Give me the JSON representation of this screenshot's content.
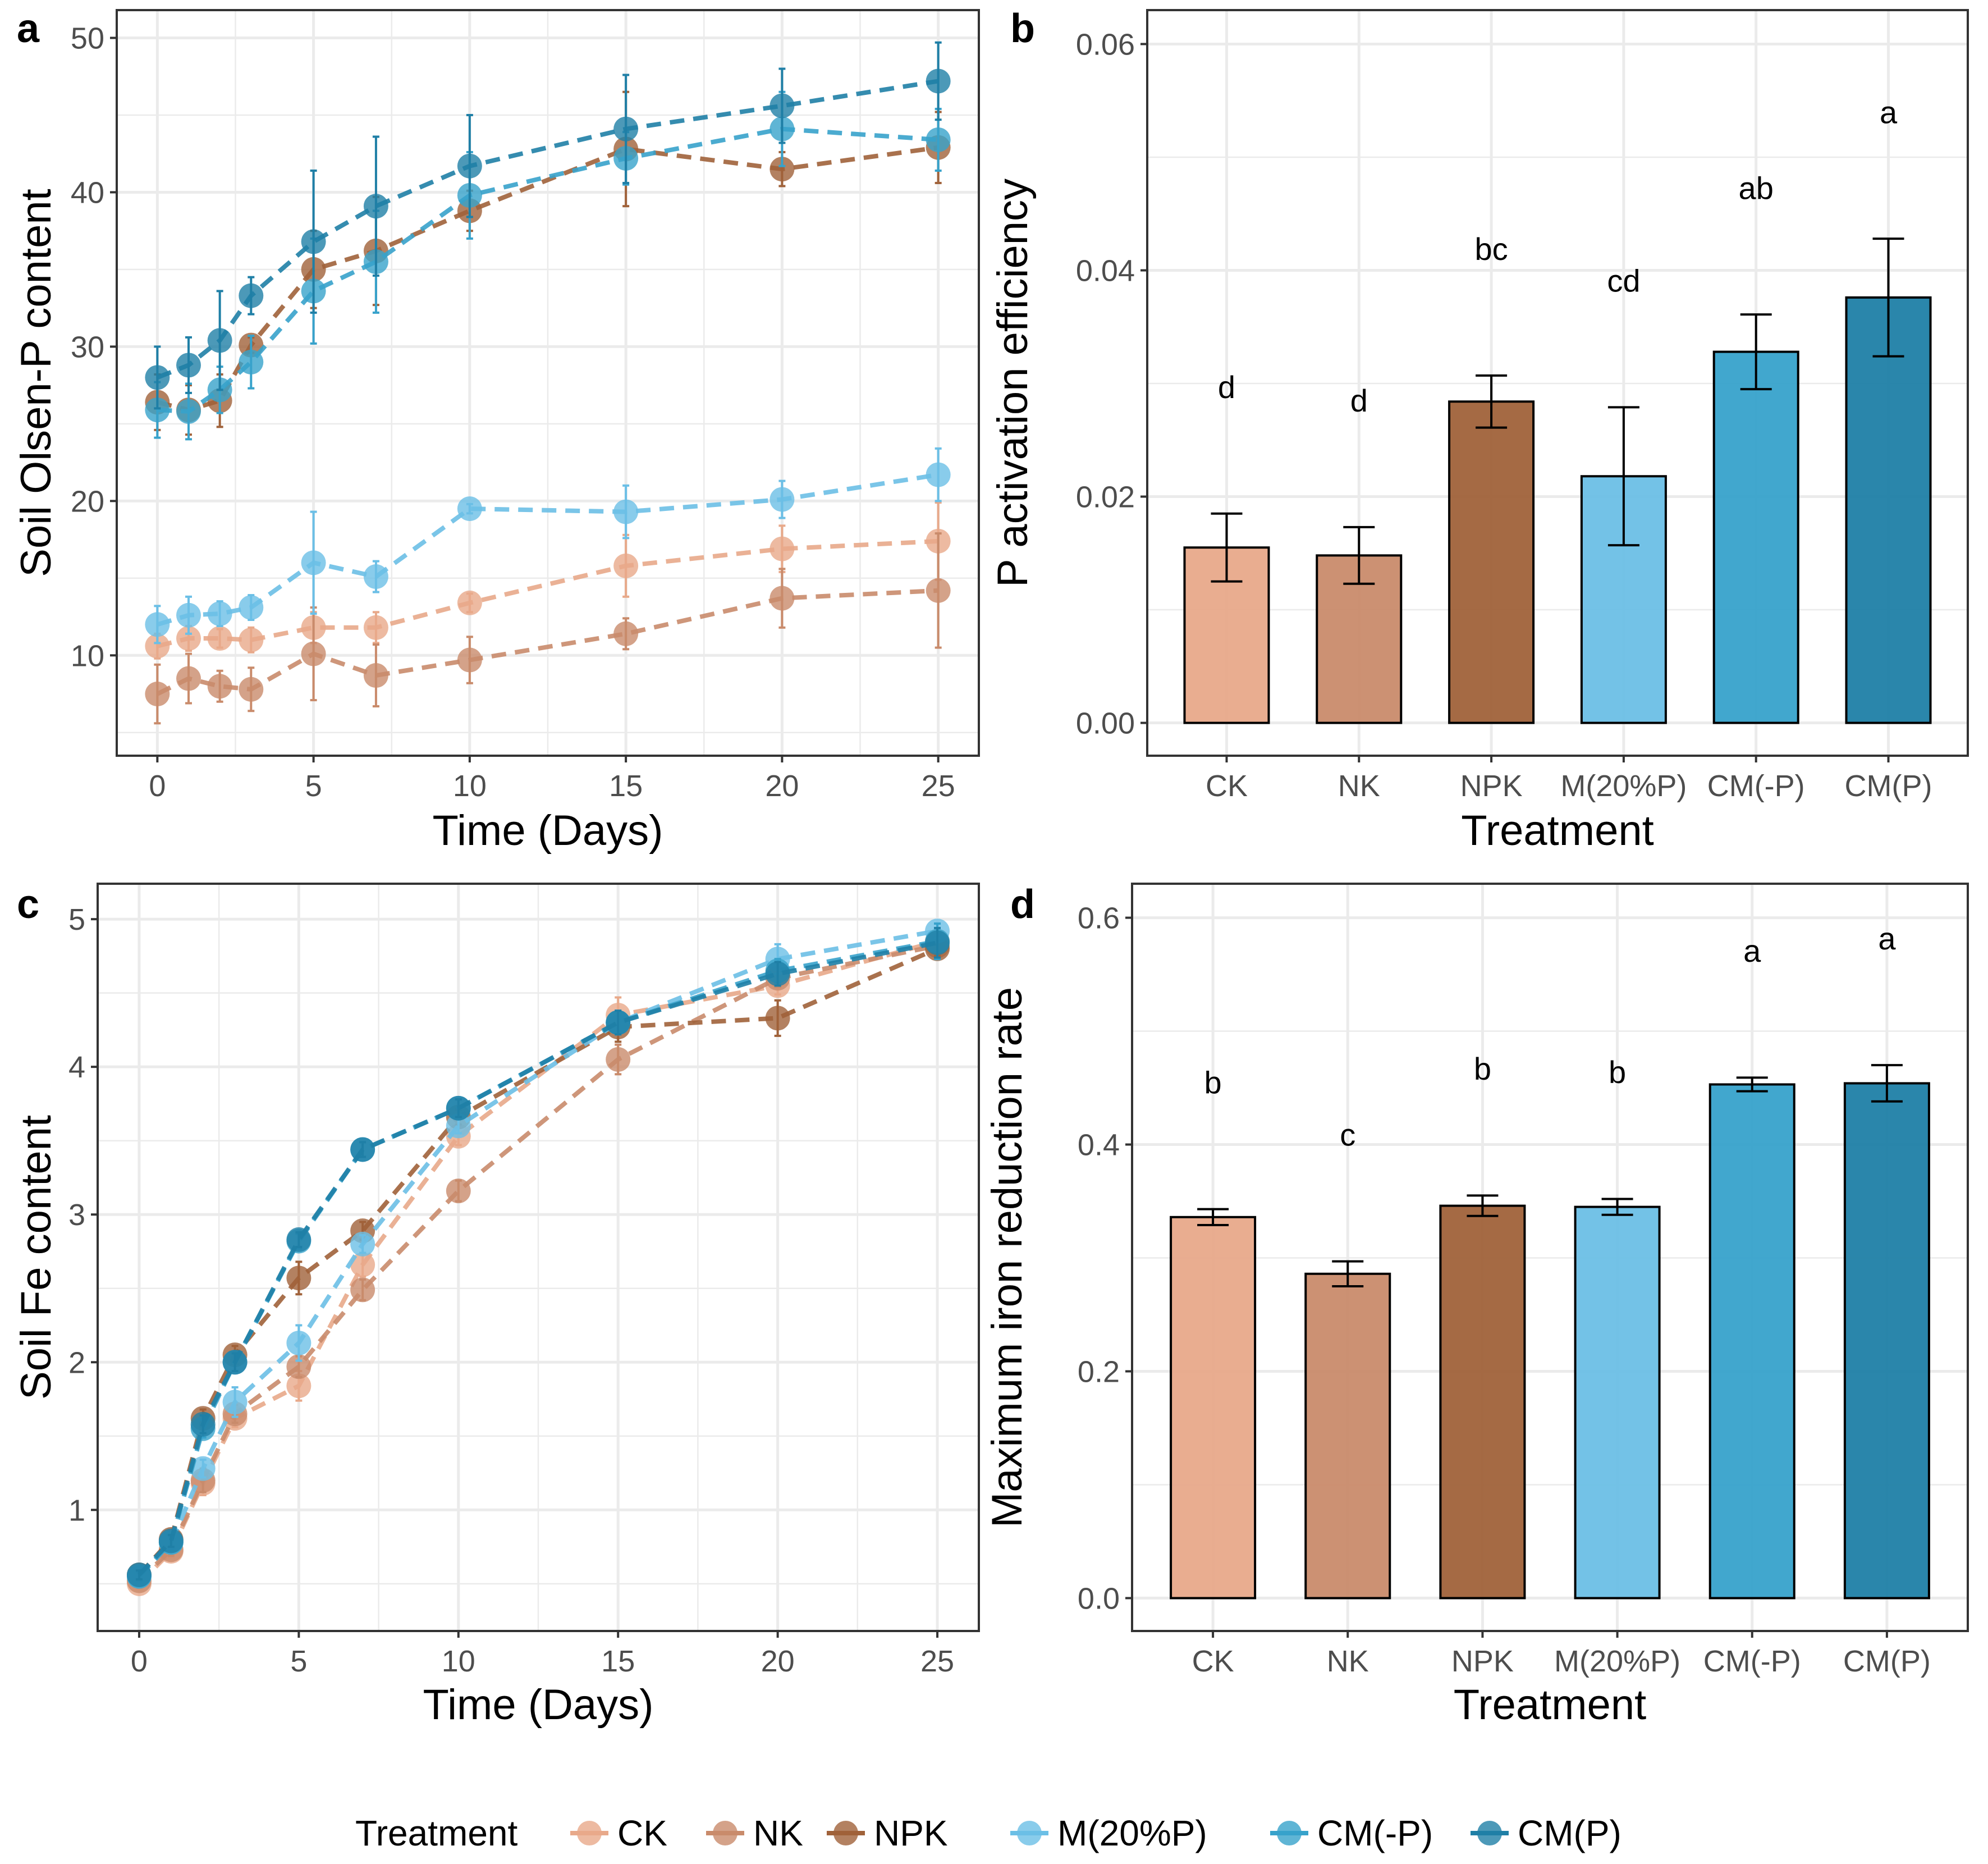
{
  "colors": {
    "CK": "#E8A98A",
    "NK": "#C98B6B",
    "NPK": "#A0623A",
    "M(20%P)": "#6BBFE6",
    "CM(-P)": "#37A2CB",
    "CM(P)": "#1F7FA6",
    "grid": "#EBEBEB",
    "border": "#333333"
  },
  "legend": {
    "title": "Treatment",
    "placement": "bottom",
    "items": [
      "CK",
      "NK",
      "NPK",
      "M(20%P)",
      "CM(-P)",
      "CM(P)"
    ]
  },
  "chart_data": [
    {
      "panel": "a",
      "type": "line",
      "xlabel": "Time (Days)",
      "ylabel": "Soil Olsen-P content",
      "xlim": [
        -1.3,
        26.3
      ],
      "ylim": [
        3.5,
        51.8
      ],
      "xticks": [
        0,
        5,
        10,
        15,
        20,
        25
      ],
      "yticks": [
        10,
        20,
        30,
        40,
        50
      ],
      "grid": true,
      "x": [
        0,
        1,
        2,
        3,
        5,
        7,
        10,
        15,
        20,
        25
      ],
      "series": [
        {
          "name": "CK",
          "values": [
            10.6,
            11.1,
            11.1,
            11.0,
            11.8,
            11.8,
            13.4,
            15.8,
            16.9,
            17.4
          ],
          "err": [
            0.8,
            0.8,
            0.6,
            0.8,
            1.0,
            1.0,
            0.6,
            2.0,
            1.5,
            2.5
          ]
        },
        {
          "name": "NK",
          "values": [
            7.5,
            8.5,
            8.0,
            7.8,
            10.1,
            8.7,
            9.7,
            11.4,
            13.7,
            14.2
          ],
          "err": [
            1.9,
            1.6,
            1.0,
            1.4,
            3.0,
            2.0,
            1.5,
            1.0,
            1.9,
            3.7
          ]
        },
        {
          "name": "NPK",
          "values": [
            26.4,
            25.9,
            26.5,
            30.1,
            35.0,
            36.2,
            38.8,
            42.8,
            41.5,
            42.9
          ],
          "err": [
            1.8,
            1.6,
            1.7,
            0.5,
            2.5,
            3.5,
            1.3,
            3.7,
            1.1,
            2.3
          ]
        },
        {
          "name": "M(20%P)",
          "values": [
            12.0,
            12.6,
            12.7,
            13.1,
            16.0,
            15.1,
            19.5,
            19.3,
            20.1,
            21.7
          ],
          "err": [
            1.2,
            1.2,
            0.8,
            0.8,
            3.3,
            1.0,
            0.3,
            1.7,
            1.2,
            1.7
          ]
        },
        {
          "name": "CM(-P)",
          "values": [
            25.9,
            25.8,
            27.2,
            29.0,
            33.6,
            35.5,
            39.8,
            42.2,
            44.1,
            43.4
          ],
          "err": [
            1.8,
            1.8,
            1.5,
            1.7,
            3.4,
            3.3,
            2.8,
            1.7,
            2.4,
            2.0
          ]
        },
        {
          "name": "CM(P)",
          "values": [
            28.0,
            28.8,
            30.4,
            33.3,
            36.8,
            39.1,
            41.7,
            44.1,
            45.6,
            47.2
          ],
          "err": [
            2.0,
            1.8,
            3.2,
            1.2,
            4.6,
            4.5,
            3.3,
            3.5,
            2.4,
            2.5
          ]
        }
      ]
    },
    {
      "panel": "b",
      "type": "bar",
      "xlabel": "Treatment",
      "ylabel": "P activation efficiency",
      "ylim": [
        -0.0029,
        0.063
      ],
      "yticks": [
        0.0,
        0.02,
        0.04,
        0.06
      ],
      "ytick_labels": [
        "0.00",
        "0.02",
        "0.04",
        "0.06"
      ],
      "grid": true,
      "categories": [
        "CK",
        "NK",
        "NPK",
        "M(20%P)",
        "CM(-P)",
        "CM(P)"
      ],
      "values": [
        0.0155,
        0.0148,
        0.0284,
        0.0218,
        0.0328,
        0.0376
      ],
      "err": [
        0.003,
        0.0025,
        0.0023,
        0.0061,
        0.0033,
        0.0052
      ],
      "letters": [
        "d",
        "d",
        "bc",
        "cd",
        "ab",
        "a"
      ]
    },
    {
      "panel": "c",
      "type": "line",
      "xlabel": "Time (Days)",
      "ylabel": "Soil Fe content",
      "xlim": [
        -1.3,
        26.3
      ],
      "ylim": [
        0.18,
        5.24
      ],
      "xticks": [
        0,
        5,
        10,
        15,
        20,
        25
      ],
      "yticks": [
        1,
        2,
        3,
        4,
        5
      ],
      "grid": true,
      "x": [
        0,
        1,
        2,
        3,
        5,
        7,
        10,
        15,
        20,
        25
      ],
      "series": [
        {
          "name": "CK",
          "values": [
            0.5,
            0.72,
            1.18,
            1.62,
            1.84,
            2.66,
            3.53,
            4.35,
            4.55,
            4.85
          ],
          "err": [
            0.03,
            0.04,
            0.08,
            0.06,
            0.1,
            0.08,
            0.06,
            0.12,
            0.06,
            0.05
          ]
        },
        {
          "name": "NK",
          "values": [
            0.52,
            0.73,
            1.2,
            1.65,
            1.97,
            2.49,
            3.16,
            4.05,
            4.6,
            4.82
          ],
          "err": [
            0.03,
            0.04,
            0.08,
            0.06,
            0.07,
            0.07,
            0.07,
            0.1,
            0.06,
            0.05
          ]
        },
        {
          "name": "NPK",
          "values": [
            0.56,
            0.8,
            1.62,
            2.05,
            2.57,
            2.89,
            3.66,
            4.27,
            4.33,
            4.8
          ],
          "err": [
            0.03,
            0.04,
            0.06,
            0.06,
            0.11,
            0.06,
            0.05,
            0.1,
            0.12,
            0.05
          ]
        },
        {
          "name": "M(20%P)",
          "values": [
            0.55,
            0.78,
            1.28,
            1.73,
            2.13,
            2.8,
            3.6,
            4.3,
            4.73,
            4.92
          ],
          "err": [
            0.03,
            0.04,
            0.06,
            0.1,
            0.12,
            0.06,
            0.05,
            0.07,
            0.1,
            0.05
          ]
        },
        {
          "name": "CM(-P)",
          "values": [
            0.55,
            0.78,
            1.55,
            2.0,
            2.82,
            3.44,
            3.72,
            4.3,
            4.65,
            4.85
          ],
          "err": [
            0.03,
            0.04,
            0.06,
            0.06,
            0.05,
            0.05,
            0.06,
            0.08,
            0.08,
            0.12
          ]
        },
        {
          "name": "CM(P)",
          "values": [
            0.56,
            0.79,
            1.58,
            2.0,
            2.83,
            3.44,
            3.72,
            4.3,
            4.63,
            4.84
          ],
          "err": [
            0.03,
            0.04,
            0.06,
            0.06,
            0.05,
            0.05,
            0.06,
            0.08,
            0.08,
            0.1
          ]
        }
      ]
    },
    {
      "panel": "d",
      "type": "bar",
      "xlabel": "Treatment",
      "ylabel": "Maximum iron reduction rate",
      "ylim": [
        -0.029,
        0.63
      ],
      "yticks": [
        0.0,
        0.2,
        0.4,
        0.6
      ],
      "ytick_labels": [
        "0.0",
        "0.2",
        "0.4",
        "0.6"
      ],
      "grid": true,
      "categories": [
        "CK",
        "NK",
        "NPK",
        "M(20%P)",
        "CM(-P)",
        "CM(P)"
      ],
      "values": [
        0.336,
        0.286,
        0.346,
        0.345,
        0.453,
        0.454
      ],
      "err": [
        0.007,
        0.011,
        0.009,
        0.007,
        0.006,
        0.016
      ],
      "letters": [
        "b",
        "c",
        "b",
        "b",
        "a",
        "a"
      ]
    }
  ]
}
